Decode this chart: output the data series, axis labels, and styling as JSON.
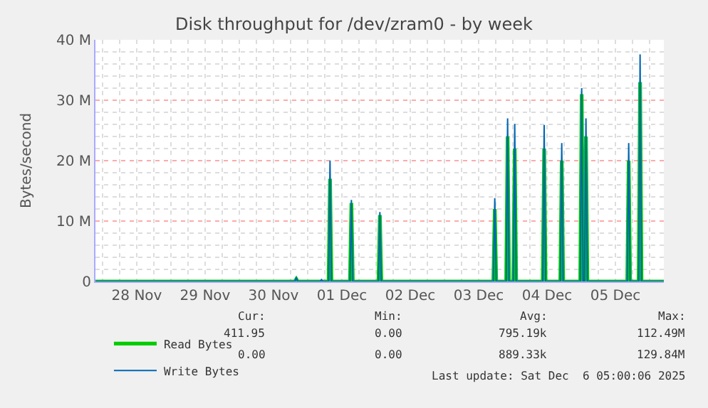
{
  "chart_data": {
    "type": "line",
    "title": "Disk throughput for /dev/zram0 - by week",
    "ylabel": "Bytes/second",
    "xlim": [
      "2025-11-27T21:30",
      "2025-12-06T05:00"
    ],
    "xticks": [
      {
        "value": "2025-11-28T12:00",
        "label": "28 Nov"
      },
      {
        "value": "2025-11-29T12:00",
        "label": "29 Nov"
      },
      {
        "value": "2025-11-30T12:00",
        "label": "30 Nov"
      },
      {
        "value": "2025-12-01T12:00",
        "label": "01 Dec"
      },
      {
        "value": "2025-12-02T12:00",
        "label": "02 Dec"
      },
      {
        "value": "2025-12-03T12:00",
        "label": "03 Dec"
      },
      {
        "value": "2025-12-04T12:00",
        "label": "04 Dec"
      },
      {
        "value": "2025-12-05T12:00",
        "label": "05 Dec"
      }
    ],
    "ylim": [
      0,
      40000000
    ],
    "yticks": [
      {
        "value": 0,
        "label": "0"
      },
      {
        "value": 10000000,
        "label": "10 M"
      },
      {
        "value": 20000000,
        "label": "20 M"
      },
      {
        "value": 30000000,
        "label": "30 M"
      },
      {
        "value": 40000000,
        "label": "40 M"
      }
    ],
    "grid": true,
    "legend": "bottom left",
    "series": [
      {
        "name": "Read Bytes",
        "color": "#00cc00",
        "x": [
          "2025-11-27T21:30",
          "2025-11-30T19:30",
          "2025-11-30T20:00",
          "2025-11-30T20:30",
          "2025-12-01T07:20",
          "2025-12-01T07:50",
          "2025-12-01T08:20",
          "2025-12-01T14:50",
          "2025-12-01T15:20",
          "2025-12-01T15:50",
          "2025-12-02T00:50",
          "2025-12-02T01:20",
          "2025-12-02T01:50",
          "2025-12-03T17:10",
          "2025-12-03T17:40",
          "2025-12-03T18:10",
          "2025-12-03T21:40",
          "2025-12-03T22:10",
          "2025-12-03T22:40",
          "2025-12-04T00:10",
          "2025-12-04T00:40",
          "2025-12-04T01:10",
          "2025-12-04T10:30",
          "2025-12-04T11:00",
          "2025-12-04T11:30",
          "2025-12-04T16:40",
          "2025-12-04T17:10",
          "2025-12-04T17:40",
          "2025-12-04T23:40",
          "2025-12-05T00:10",
          "2025-12-05T00:40",
          "2025-12-05T01:10",
          "2025-12-05T01:40",
          "2025-12-05T02:10",
          "2025-12-05T16:10",
          "2025-12-05T16:40",
          "2025-12-05T17:10",
          "2025-12-05T20:10",
          "2025-12-05T20:40",
          "2025-12-05T21:10",
          "2025-12-06T05:00"
        ],
        "values": [
          0,
          0,
          400000,
          0,
          0,
          17000000,
          0,
          0,
          13000000,
          0,
          0,
          11000000,
          0,
          0,
          12000000,
          0,
          0,
          24000000,
          0,
          0,
          22000000,
          0,
          0,
          22000000,
          0,
          0,
          20000000,
          0,
          0,
          31000000,
          0,
          0,
          24000000,
          0,
          0,
          20000000,
          0,
          0,
          33000000,
          0,
          0
        ]
      },
      {
        "name": "Write Bytes",
        "color": "#0066b3",
        "x": [
          "2025-11-27T21:30",
          "2025-11-30T19:30",
          "2025-11-30T20:00",
          "2025-11-30T20:30",
          "2025-12-01T04:20",
          "2025-12-01T04:50",
          "2025-12-01T05:20",
          "2025-12-01T07:20",
          "2025-12-01T07:50",
          "2025-12-01T08:20",
          "2025-12-01T14:50",
          "2025-12-01T15:20",
          "2025-12-01T15:50",
          "2025-12-02T00:50",
          "2025-12-02T01:20",
          "2025-12-02T01:50",
          "2025-12-03T17:10",
          "2025-12-03T17:40",
          "2025-12-03T18:10",
          "2025-12-03T21:40",
          "2025-12-03T22:10",
          "2025-12-03T22:40",
          "2025-12-04T00:10",
          "2025-12-04T00:40",
          "2025-12-04T01:10",
          "2025-12-04T10:30",
          "2025-12-04T11:00",
          "2025-12-04T11:30",
          "2025-12-04T16:40",
          "2025-12-04T17:10",
          "2025-12-04T17:40",
          "2025-12-04T23:40",
          "2025-12-05T00:10",
          "2025-12-05T00:40",
          "2025-12-05T01:10",
          "2025-12-05T01:40",
          "2025-12-05T02:10",
          "2025-12-05T16:10",
          "2025-12-05T16:40",
          "2025-12-05T17:10",
          "2025-12-05T20:10",
          "2025-12-05T20:40",
          "2025-12-05T21:10",
          "2025-12-06T05:00"
        ],
        "values": [
          0,
          0,
          700000,
          0,
          0,
          300000,
          0,
          0,
          20000000,
          0,
          0,
          13500000,
          0,
          0,
          11500000,
          0,
          0,
          13800000,
          0,
          0,
          27000000,
          0,
          0,
          26100000,
          0,
          0,
          25900000,
          0,
          0,
          22900000,
          0,
          0,
          32000000,
          0,
          0,
          27000000,
          0,
          0,
          22900000,
          0,
          0,
          37600000,
          0,
          0
        ]
      }
    ],
    "annotations": [
      "Cur:",
      "Min:",
      "Avg:",
      "Max:",
      "411.95",
      "0.00",
      "795.19k",
      "112.49M",
      "0.00",
      "0.00",
      "889.33k",
      "129.84M",
      "Last update: Sat Dec  6 05:00:06 2025"
    ]
  }
}
